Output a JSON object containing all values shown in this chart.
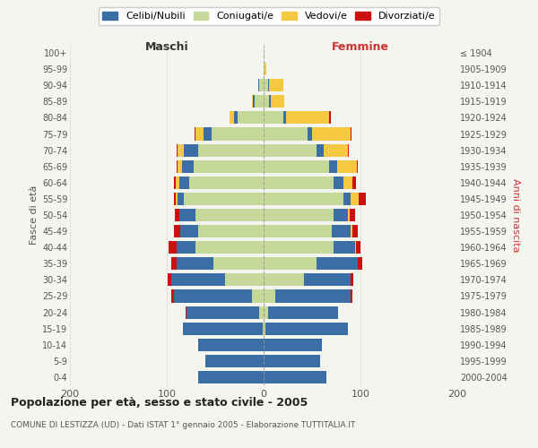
{
  "age_groups": [
    "0-4",
    "5-9",
    "10-14",
    "15-19",
    "20-24",
    "25-29",
    "30-34",
    "35-39",
    "40-44",
    "45-49",
    "50-54",
    "55-59",
    "60-64",
    "65-69",
    "70-74",
    "75-79",
    "80-84",
    "85-89",
    "90-94",
    "95-99",
    "100+"
  ],
  "birth_years": [
    "2000-2004",
    "1995-1999",
    "1990-1994",
    "1985-1989",
    "1980-1984",
    "1975-1979",
    "1970-1974",
    "1965-1969",
    "1960-1964",
    "1955-1959",
    "1950-1954",
    "1945-1949",
    "1940-1944",
    "1935-1939",
    "1930-1934",
    "1925-1929",
    "1920-1924",
    "1915-1919",
    "1910-1914",
    "1905-1909",
    "≤ 1904"
  ],
  "males": {
    "celibi": [
      68,
      60,
      68,
      82,
      75,
      81,
      55,
      38,
      20,
      18,
      17,
      7,
      10,
      12,
      14,
      8,
      4,
      2,
      1,
      0,
      0
    ],
    "coniugati": [
      0,
      0,
      0,
      1,
      5,
      12,
      40,
      52,
      70,
      68,
      70,
      82,
      77,
      72,
      68,
      54,
      27,
      9,
      5,
      0,
      0
    ],
    "vedovi": [
      0,
      0,
      0,
      0,
      0,
      0,
      0,
      0,
      0,
      0,
      0,
      2,
      4,
      5,
      7,
      8,
      4,
      1,
      0,
      0,
      0
    ],
    "divorziati": [
      0,
      0,
      0,
      0,
      1,
      2,
      4,
      5,
      8,
      7,
      5,
      2,
      2,
      1,
      1,
      1,
      0,
      0,
      0,
      0,
      0
    ]
  },
  "females": {
    "nubili": [
      65,
      58,
      60,
      85,
      72,
      78,
      48,
      42,
      22,
      20,
      15,
      8,
      10,
      8,
      7,
      5,
      3,
      1,
      1,
      0,
      0
    ],
    "coniugate": [
      0,
      0,
      0,
      2,
      5,
      12,
      42,
      55,
      72,
      70,
      72,
      82,
      72,
      68,
      55,
      45,
      20,
      6,
      5,
      1,
      0
    ],
    "vedove": [
      0,
      0,
      0,
      0,
      0,
      0,
      0,
      0,
      1,
      2,
      2,
      8,
      10,
      20,
      25,
      40,
      45,
      14,
      14,
      2,
      0
    ],
    "divorziate": [
      0,
      0,
      0,
      0,
      0,
      2,
      3,
      5,
      5,
      5,
      5,
      8,
      3,
      1,
      1,
      1,
      1,
      0,
      0,
      0,
      0
    ]
  },
  "colors": {
    "celibi": "#3a6ea5",
    "coniugati": "#c5d89a",
    "vedovi": "#f5c842",
    "divorziati": "#cc1111"
  },
  "title": "Popolazione per età, sesso e stato civile - 2005",
  "subtitle": "COMUNE DI LESTIZZA (UD) - Dati ISTAT 1° gennaio 2005 - Elaborazione TUTTITALIA.IT",
  "xlabel_left": "Maschi",
  "xlabel_right": "Femmine",
  "ylabel_left": "Fasce di età",
  "ylabel_right": "Anni di nascita",
  "xlim": 200,
  "bg_color": "#f5f5f0",
  "legend_labels": [
    "Celibi/Nubili",
    "Coniugati/e",
    "Vedovi/e",
    "Divorziati/e"
  ]
}
